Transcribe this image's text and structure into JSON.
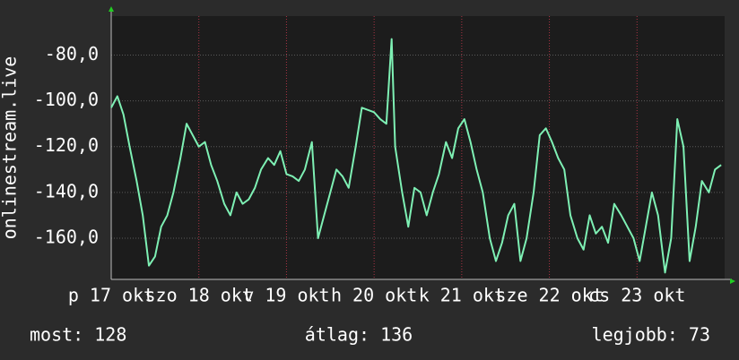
{
  "chart_data": {
    "type": "line",
    "y_label": "onlinestream.live",
    "x": [
      0,
      0.07,
      0.14,
      0.21,
      0.29,
      0.36,
      0.43,
      0.5,
      0.57,
      0.64,
      0.71,
      0.79,
      0.86,
      0.93,
      1.0,
      1.07,
      1.14,
      1.21,
      1.29,
      1.36,
      1.43,
      1.5,
      1.57,
      1.64,
      1.71,
      1.79,
      1.86,
      1.93,
      2.0,
      2.07,
      2.14,
      2.21,
      2.29,
      2.36,
      2.43,
      2.5,
      2.57,
      2.64,
      2.71,
      2.79,
      2.86,
      2.93,
      3.0,
      3.07,
      3.14,
      3.2,
      3.24,
      3.32,
      3.39,
      3.46,
      3.53,
      3.6,
      3.67,
      3.74,
      3.82,
      3.89,
      3.96,
      4.03,
      4.1,
      4.17,
      4.24,
      4.32,
      4.39,
      4.46,
      4.53,
      4.6,
      4.67,
      4.74,
      4.82,
      4.89,
      4.96,
      5.03,
      5.1,
      5.17,
      5.24,
      5.32,
      5.39,
      5.46,
      5.53,
      5.6,
      5.67,
      5.74,
      5.82,
      5.89,
      5.96,
      6.03,
      6.1,
      6.17,
      6.24,
      6.32,
      6.39,
      6.46,
      6.53,
      6.6,
      6.67,
      6.74,
      6.82,
      6.89,
      6.96
    ],
    "series": [
      {
        "name": "onlinestream.live",
        "color": "#7ef0b4",
        "values": [
          -103,
          -98,
          -106,
          -120,
          -135,
          -150,
          -172,
          -168,
          -155,
          -150,
          -140,
          -125,
          -110,
          -115,
          -120,
          -118,
          -128,
          -135,
          -145,
          -150,
          -140,
          -145,
          -143,
          -138,
          -130,
          -125,
          -128,
          -122,
          -132,
          -133,
          -135,
          -130,
          -118,
          -160,
          -150,
          -140,
          -130,
          -133,
          -138,
          -120,
          -103,
          -104,
          -105,
          -108,
          -110,
          -73,
          -120,
          -140,
          -155,
          -138,
          -140,
          -150,
          -140,
          -132,
          -118,
          -125,
          -112,
          -108,
          -118,
          -130,
          -140,
          -160,
          -170,
          -162,
          -150,
          -145,
          -170,
          -160,
          -140,
          -115,
          -112,
          -118,
          -125,
          -130,
          -150,
          -160,
          -165,
          -150,
          -158,
          -155,
          -162,
          -145,
          -150,
          -155,
          -160,
          -170,
          -155,
          -140,
          -150,
          -175,
          -160,
          -108,
          -120,
          -170,
          -155,
          -135,
          -140,
          -130,
          -128
        ]
      }
    ],
    "xlim": [
      0,
      7
    ],
    "xticks": [
      {
        "value": 0,
        "label": "p 17 okt"
      },
      {
        "value": 1,
        "label": "szo 18 okt"
      },
      {
        "value": 2,
        "label": "v 19 okt"
      },
      {
        "value": 3,
        "label": "h 20 okt"
      },
      {
        "value": 4,
        "label": "k 21 okt"
      },
      {
        "value": 5,
        "label": "sze 22 okt"
      },
      {
        "value": 6,
        "label": "cs 23 okt"
      }
    ],
    "ylim": [
      -178,
      -63
    ],
    "yticks": [
      {
        "value": -160,
        "label": "-160,0"
      },
      {
        "value": -140,
        "label": "-140,0"
      },
      {
        "value": -120,
        "label": "-120,0"
      },
      {
        "value": -100,
        "label": "-100,0"
      },
      {
        "value": -80,
        "label": "-80,0"
      }
    ],
    "grid": true,
    "stats": [
      "most: 128",
      "átlag: 136",
      "legjobb: 73"
    ]
  }
}
